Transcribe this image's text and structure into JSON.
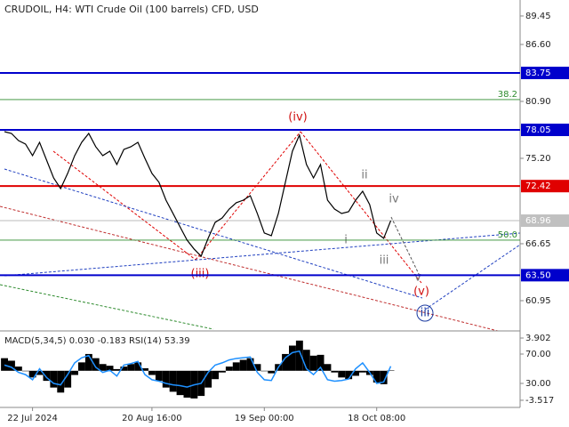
{
  "chart_data": {
    "type": "line",
    "title": "CRUDOIL, H4:  WTI Crude Oil (100 barrels) CFD, USD",
    "categories": [
      null,
      null,
      null,
      null,
      "22 Jul 2024",
      null,
      null,
      null,
      null,
      null,
      null,
      null,
      null,
      null,
      null,
      null,
      null,
      null,
      null,
      null,
      null,
      "20 Aug 16:00",
      null,
      null,
      null,
      null,
      null,
      null,
      null,
      null,
      null,
      null,
      null,
      null,
      null,
      null,
      null,
      "19 Sep 00:00",
      null,
      null,
      null,
      null,
      null,
      null,
      null,
      null,
      null,
      null,
      null,
      null,
      null,
      null,
      null,
      "18 Oct 08:00",
      null,
      null
    ],
    "values": [
      77.87,
      77.69,
      76.98,
      76.63,
      75.47,
      76.8,
      75.02,
      73.24,
      72.17,
      73.69,
      75.47,
      76.8,
      77.69,
      76.36,
      75.47,
      75.91,
      74.58,
      76.09,
      76.36,
      76.8,
      75.2,
      73.69,
      72.8,
      71.01,
      69.68,
      68.34,
      67.01,
      66.12,
      65.4,
      67.19,
      68.79,
      69.23,
      70.12,
      70.75,
      71.01,
      71.46,
      69.68,
      67.72,
      67.45,
      69.68,
      72.8,
      75.91,
      77.52,
      74.58,
      73.24,
      74.58,
      71.01,
      70.12,
      69.68,
      69.86,
      71.01,
      71.9,
      70.57,
      67.72,
      67.19,
      68.96
    ],
    "color": "#000000",
    "ylim": [
      57.92,
      91.05
    ],
    "yticks": [
      89.45,
      {
        "value": 86.6,
        "label": "86.60"
      },
      {
        "value": 80.9,
        "label": "80.90"
      },
      {
        "value": 75.2,
        "label": "75.20"
      },
      66.65,
      60.95
    ],
    "levels": [
      {
        "value": 83.75,
        "color": "#0000cc"
      },
      {
        "value": 78.05,
        "color": "#0000cc"
      },
      {
        "value": 72.42,
        "color": "#e00000"
      },
      {
        "value": 63.5,
        "label": "63.50",
        "color": "#0000cc"
      }
    ],
    "last_price": 68.96,
    "fibo": [
      {
        "value": 81.08,
        "label": "38.2",
        "color": "#2e8b2e"
      },
      {
        "value": 67.01,
        "label": "50.0",
        "color": "#2e8b2e"
      }
    ],
    "annotations": [
      "(iv)",
      "(iii)",
      "(v)",
      "iii",
      "ii",
      "iv",
      "i",
      "iii",
      "v"
    ],
    "indicator_label": "MACD(5,34,5) 0.030 -0.183 RSI(14) 53.39",
    "macd": {
      "color": "#000000",
      "ylim": [
        -4.37,
        4.75
      ],
      "yticks": [
        3.902,
        -3.517
      ],
      "values": [
        1.5,
        1.2,
        0.5,
        0.0,
        -0.8,
        -0.5,
        -1.2,
        -2.0,
        -2.6,
        -2.0,
        -0.5,
        1.0,
        2.0,
        1.5,
        0.8,
        0.6,
        0.2,
        0.5,
        0.8,
        1.0,
        0.3,
        -0.5,
        -1.2,
        -2.0,
        -2.5,
        -2.9,
        -3.2,
        -3.3,
        -3.0,
        -2.0,
        -1.0,
        -0.2,
        0.5,
        1.0,
        1.3,
        1.5,
        0.8,
        0.0,
        -0.3,
        0.8,
        2.0,
        3.0,
        3.6,
        2.5,
        1.8,
        1.9,
        0.8,
        -0.2,
        -0.8,
        -1.0,
        -0.6,
        -0.2,
        -0.5,
        -1.4,
        -1.6,
        0.03
      ]
    },
    "rsi": {
      "color": "#1e90ff",
      "ylim": [
        -2.7,
        101.5
      ],
      "yticks": [
        {
          "value": 70,
          "label": "70.00"
        },
        {
          "value": 30,
          "label": "30.00"
        }
      ],
      "values": [
        55,
        52,
        45,
        42,
        35,
        50,
        38,
        30,
        28,
        42,
        58,
        65,
        68,
        52,
        45,
        48,
        40,
        55,
        57,
        60,
        42,
        35,
        33,
        30,
        28,
        27,
        25,
        28,
        30,
        45,
        55,
        58,
        62,
        64,
        65,
        66,
        45,
        35,
        34,
        52,
        65,
        72,
        74,
        50,
        42,
        52,
        35,
        33,
        34,
        36,
        50,
        58,
        45,
        30,
        32,
        53.39
      ]
    }
  }
}
